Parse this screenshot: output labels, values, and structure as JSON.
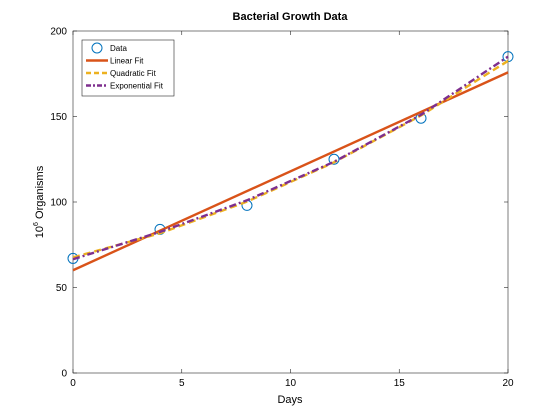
{
  "chart_data": {
    "type": "line",
    "title": "Bacterial Growth Data",
    "xlabel": "Days",
    "ylabel_base": "10",
    "ylabel_exp": "6",
    "ylabel_rest": " Organisms",
    "xlim": [
      0,
      20
    ],
    "ylim": [
      0,
      200
    ],
    "xticks": [
      0,
      5,
      10,
      15,
      20
    ],
    "yticks": [
      0,
      50,
      100,
      150,
      200
    ],
    "grid": false,
    "legend_position": "top-left",
    "series": [
      {
        "name": "Data",
        "style": "markers",
        "marker": "circle",
        "color": "#0072bd",
        "x": [
          0,
          4,
          8,
          12,
          16,
          20
        ],
        "y": [
          67,
          84,
          98,
          125,
          149,
          185
        ]
      },
      {
        "name": "Linear Fit",
        "style": "solid",
        "color": "#d95319",
        "x": [
          0,
          20
        ],
        "y": [
          60.1,
          175.8
        ]
      },
      {
        "name": "Quadratic Fit",
        "style": "dashed",
        "color": "#edb120",
        "x": [
          0,
          4,
          8,
          12,
          16,
          20
        ],
        "y": [
          67.6,
          81.7,
          100.2,
          123.2,
          150.6,
          182.5
        ]
      },
      {
        "name": "Exponential Fit",
        "style": "dashdot",
        "color": "#7e2f8e",
        "x": [
          0,
          4,
          8,
          12,
          16,
          20
        ],
        "y": [
          66.5,
          82.5,
          101,
          123.5,
          151,
          185
        ]
      }
    ]
  }
}
